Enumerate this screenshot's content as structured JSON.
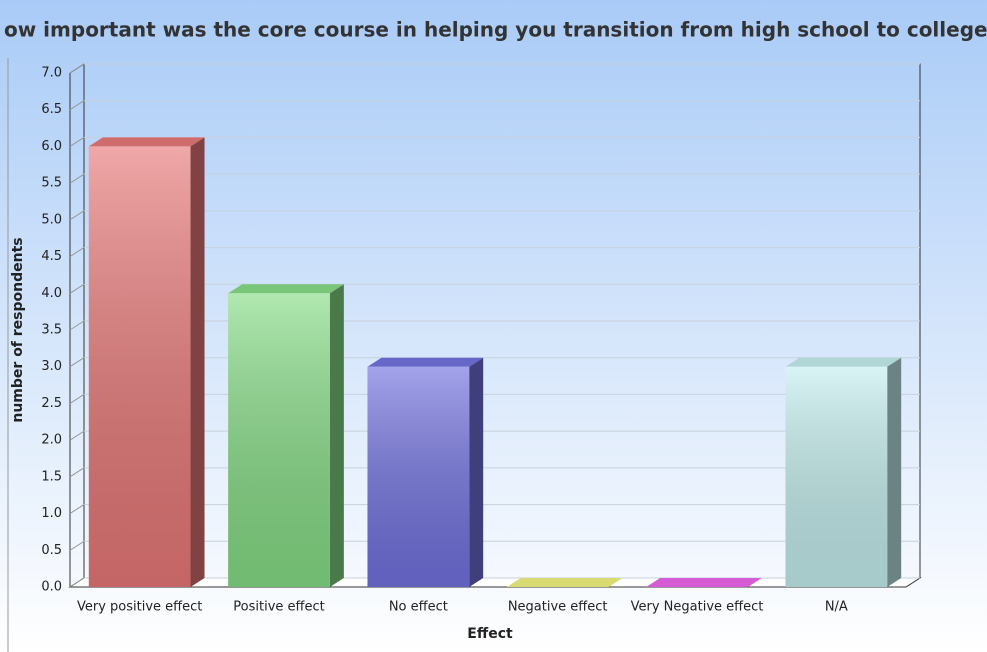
{
  "chart_data": {
    "type": "bar3d",
    "title": "ow important was the core course in helping you transition from high school to college",
    "x_label": "Effect",
    "y_label": "number of respondents",
    "categories": [
      "Very positive effect",
      "Positive effect",
      "No effect",
      "Negative effect",
      "Very Negative effect",
      "N/A"
    ],
    "values": [
      6,
      4,
      3,
      0,
      0,
      3
    ],
    "colors": [
      "#e87878",
      "#86dc86",
      "#7272e0",
      "#f2f280",
      "#ee66ee",
      "#c4eeee"
    ],
    "ylim": [
      0,
      7
    ],
    "yticks": [
      {
        "value": 0,
        "label": "0.0"
      },
      {
        "value": 0.5,
        "label": "0.5"
      },
      {
        "value": 1,
        "label": "1.0"
      },
      {
        "value": 1.5,
        "label": "1.5"
      },
      {
        "value": 2,
        "label": "2.0"
      },
      {
        "value": 2.5,
        "label": "2.5"
      },
      {
        "value": 3,
        "label": "3.0"
      },
      {
        "value": 3.5,
        "label": "3.5"
      },
      {
        "value": 4,
        "label": "4.0"
      },
      {
        "value": 4.5,
        "label": "4.5"
      },
      {
        "value": 5,
        "label": "5.0"
      },
      {
        "value": 5.5,
        "label": "5.5"
      },
      {
        "value": 6,
        "label": "6.0"
      },
      {
        "value": 6.5,
        "label": "6.5"
      },
      {
        "value": 7,
        "label": "7.0"
      }
    ],
    "grid": true
  }
}
